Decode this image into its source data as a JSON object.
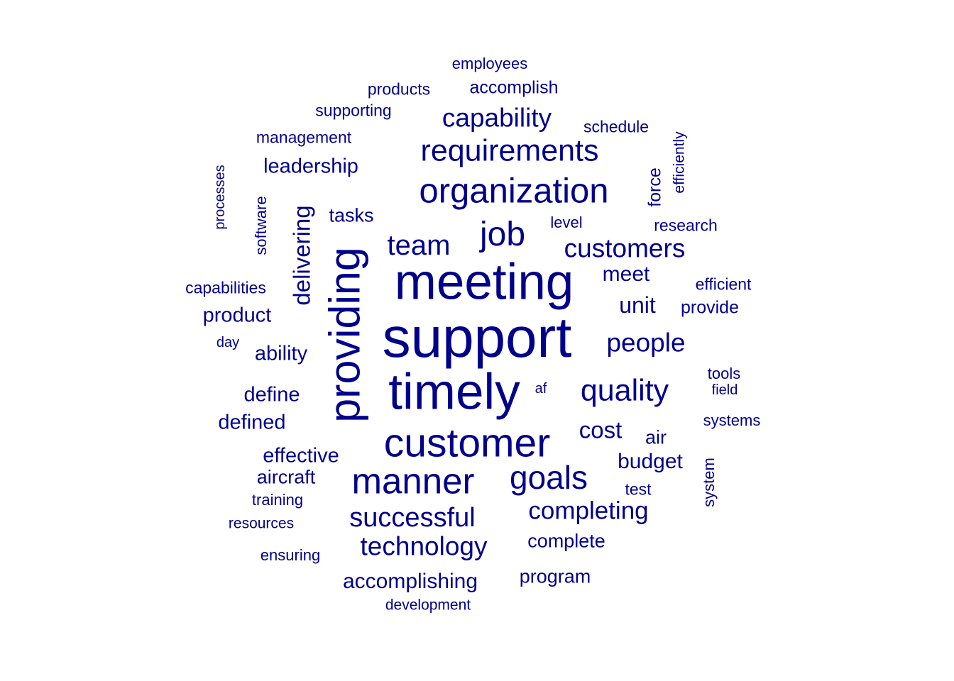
{
  "word_color": "#00008B",
  "background": "#FFFFFF",
  "words": [
    {
      "text": "support",
      "weight": 100,
      "vertical": false
    },
    {
      "text": "meeting",
      "weight": 86,
      "vertical": false
    },
    {
      "text": "timely",
      "weight": 86,
      "vertical": false
    },
    {
      "text": "providing",
      "weight": 74,
      "vertical": true
    },
    {
      "text": "customer",
      "weight": 70,
      "vertical": false
    },
    {
      "text": "manner",
      "weight": 62,
      "vertical": false
    },
    {
      "text": "organization",
      "weight": 60,
      "vertical": false
    },
    {
      "text": "job",
      "weight": 58,
      "vertical": false
    },
    {
      "text": "goals",
      "weight": 56,
      "vertical": false
    },
    {
      "text": "requirements",
      "weight": 52,
      "vertical": false
    },
    {
      "text": "quality",
      "weight": 52,
      "vertical": false
    },
    {
      "text": "team",
      "weight": 48,
      "vertical": false
    },
    {
      "text": "successful",
      "weight": 46,
      "vertical": false
    },
    {
      "text": "technology",
      "weight": 44,
      "vertical": false
    },
    {
      "text": "customers",
      "weight": 44,
      "vertical": false
    },
    {
      "text": "capability",
      "weight": 44,
      "vertical": false
    },
    {
      "text": "people",
      "weight": 44,
      "vertical": false
    },
    {
      "text": "completing",
      "weight": 42,
      "vertical": false
    },
    {
      "text": "delivering",
      "weight": 40,
      "vertical": true
    },
    {
      "text": "cost",
      "weight": 40,
      "vertical": false
    },
    {
      "text": "unit",
      "weight": 38,
      "vertical": false
    },
    {
      "text": "meet",
      "weight": 36,
      "vertical": false
    },
    {
      "text": "accomplishing",
      "weight": 36,
      "vertical": false
    },
    {
      "text": "budget",
      "weight": 36,
      "vertical": false
    },
    {
      "text": "leadership",
      "weight": 34,
      "vertical": false
    },
    {
      "text": "product",
      "weight": 34,
      "vertical": false
    },
    {
      "text": "ability",
      "weight": 34,
      "vertical": false
    },
    {
      "text": "define",
      "weight": 34,
      "vertical": false
    },
    {
      "text": "defined",
      "weight": 34,
      "vertical": false
    },
    {
      "text": "effective",
      "weight": 34,
      "vertical": false
    },
    {
      "text": "aircraft",
      "weight": 32,
      "vertical": false
    },
    {
      "text": "program",
      "weight": 32,
      "vertical": false
    },
    {
      "text": "tasks",
      "weight": 32,
      "vertical": false
    },
    {
      "text": "complete",
      "weight": 32,
      "vertical": false
    },
    {
      "text": "air",
      "weight": 32,
      "vertical": false
    },
    {
      "text": "provide",
      "weight": 30,
      "vertical": false
    },
    {
      "text": "accomplish",
      "weight": 30,
      "vertical": false
    },
    {
      "text": "force",
      "weight": 30,
      "vertical": true
    },
    {
      "text": "research",
      "weight": 28,
      "vertical": false
    },
    {
      "text": "management",
      "weight": 28,
      "vertical": false
    },
    {
      "text": "capabilities",
      "weight": 28,
      "vertical": false
    },
    {
      "text": "schedule",
      "weight": 28,
      "vertical": false
    },
    {
      "text": "efficient",
      "weight": 28,
      "vertical": false
    },
    {
      "text": "products",
      "weight": 28,
      "vertical": false
    },
    {
      "text": "test",
      "weight": 28,
      "vertical": false
    },
    {
      "text": "supporting",
      "weight": 28,
      "vertical": false
    },
    {
      "text": "training",
      "weight": 27,
      "vertical": false
    },
    {
      "text": "level",
      "weight": 27,
      "vertical": false
    },
    {
      "text": "employees",
      "weight": 26,
      "vertical": false
    },
    {
      "text": "software",
      "weight": 26,
      "vertical": true
    },
    {
      "text": "systems",
      "weight": 26,
      "vertical": false
    },
    {
      "text": "system",
      "weight": 26,
      "vertical": true
    },
    {
      "text": "ensuring",
      "weight": 26,
      "vertical": false
    },
    {
      "text": "tools",
      "weight": 26,
      "vertical": false
    },
    {
      "text": "development",
      "weight": 25,
      "vertical": false
    },
    {
      "text": "resources",
      "weight": 25,
      "vertical": false
    },
    {
      "text": "efficiently",
      "weight": 25,
      "vertical": true
    },
    {
      "text": "processes",
      "weight": 24,
      "vertical": true
    },
    {
      "text": "af",
      "weight": 24,
      "vertical": false
    },
    {
      "text": "field",
      "weight": 24,
      "vertical": false
    },
    {
      "text": "day",
      "weight": 24,
      "vertical": false
    }
  ]
}
